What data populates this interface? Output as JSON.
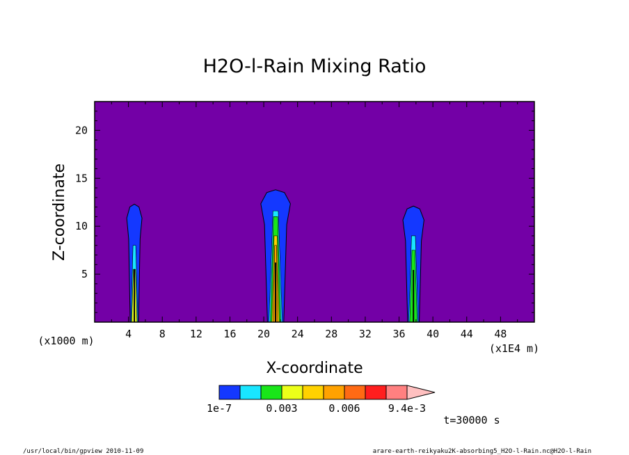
{
  "chart_data": {
    "type": "heatmap",
    "title": "H2O-l-Rain Mixing Ratio",
    "xlabel": "X-coordinate",
    "ylabel": "Z-coordinate",
    "x_unit_left": "(x1000 m)",
    "x_unit_right": "(x1E4 m)",
    "xlim": [
      0,
      52
    ],
    "ylim": [
      0,
      23
    ],
    "xticks": [
      4,
      8,
      12,
      16,
      20,
      24,
      28,
      32,
      36,
      40,
      44,
      48
    ],
    "yticks": [
      5,
      10,
      15,
      20
    ],
    "background_color": "#7300a6",
    "colorbar": {
      "colors": [
        "#1438ff",
        "#19e6ff",
        "#19e619",
        "#ecff19",
        "#ffd200",
        "#ffa200",
        "#ff6a14",
        "#ff1e1e",
        "#ff8080",
        "#ffc0c0"
      ],
      "labels": [
        "1e-7",
        "0.003",
        "0.006",
        "9.4e-3"
      ]
    },
    "plumes": [
      {
        "x_center": 4.7,
        "top": 12.3,
        "width": 1.8,
        "core_levels": [
          [
            "#19e6ff",
            8
          ],
          [
            "#ecff19",
            5.5
          ]
        ]
      },
      {
        "x_center": 21.4,
        "top": 13.8,
        "width": 3.5,
        "core_levels": [
          [
            "#19e6ff",
            11.6
          ],
          [
            "#19e619",
            11
          ],
          [
            "#ffd200",
            9
          ],
          [
            "#ffa200",
            8
          ]
        ]
      },
      {
        "x_center": 37.7,
        "top": 12.1,
        "width": 2.5,
        "core_levels": [
          [
            "#19e6ff",
            9
          ],
          [
            "#19e619",
            7.5
          ]
        ]
      }
    ]
  },
  "time_label": "t=30000 s",
  "footer_left": "/usr/local/bin/gpview  2010-11-09",
  "footer_right": "arare-earth-reikyaku2K-absorbing5_H2O-l-Rain.nc@H2O-l-Rain"
}
